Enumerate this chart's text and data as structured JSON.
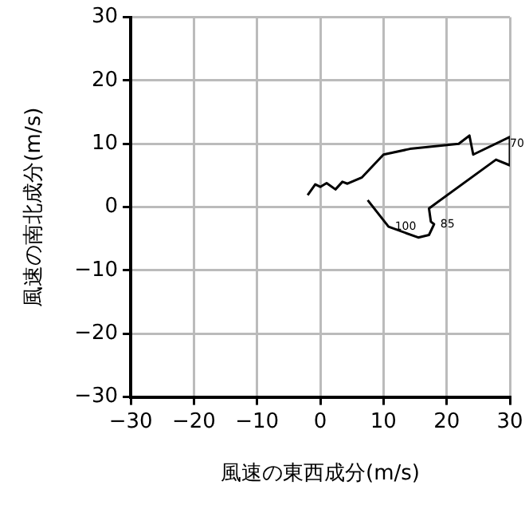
{
  "chart_data": {
    "type": "line",
    "xlabel": "風速の東西成分(m/s)",
    "ylabel": "風速の南北成分(m/s)",
    "xlim": [
      -30,
      30
    ],
    "ylim": [
      -30,
      30
    ],
    "xticks": [
      -30,
      -20,
      -10,
      0,
      10,
      20,
      30
    ],
    "yticks": [
      -30,
      -20,
      -10,
      0,
      10,
      20,
      30
    ],
    "grid": true,
    "marker": "none",
    "line_style": "solid",
    "series": [
      {
        "color": "#000000",
        "x": [
          -2,
          -0.8,
          0,
          1,
          2.4,
          3.5,
          4.3,
          6.6,
          10,
          14.2,
          21.9,
          23.6,
          24.2,
          30,
          30,
          27.8,
          17.2,
          17.5,
          18,
          17.2,
          15.5,
          10.8,
          7.5
        ],
        "values": [
          1.9,
          3.6,
          3.2,
          3.8,
          2.8,
          4,
          3.7,
          4.7,
          8.3,
          9.2,
          10,
          11.3,
          8.3,
          11.1,
          6.6,
          7.5,
          -0.2,
          -2.3,
          -2.7,
          -4.4,
          -4.8,
          -3.1,
          1.1
        ]
      }
    ],
    "annotations": [
      {
        "text": "70",
        "x": 29,
        "y": 10
      },
      {
        "text": "85",
        "x": 18,
        "y": -2.7
      },
      {
        "text": "100",
        "x": 10.8,
        "y": -3.1
      }
    ]
  }
}
